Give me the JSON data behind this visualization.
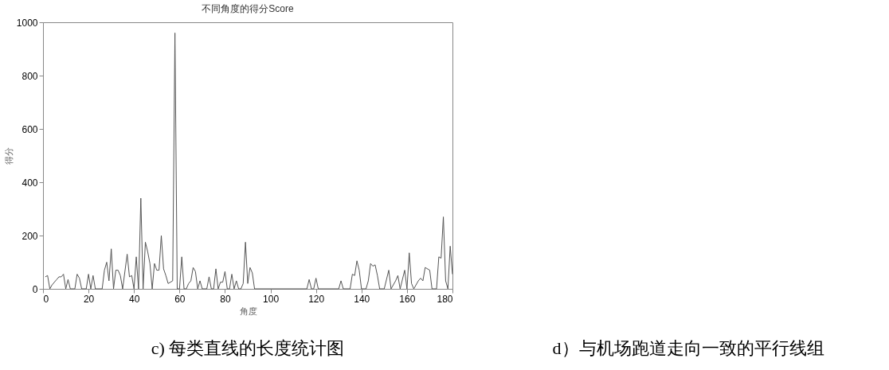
{
  "chart_data": {
    "type": "line",
    "title": "不同角度的得分Score",
    "xlabel": "角度",
    "ylabel": "得分",
    "x": [
      1,
      2,
      3,
      4,
      6,
      7,
      8,
      9,
      10,
      11,
      12,
      14,
      15,
      16,
      17,
      19,
      20,
      21,
      22,
      23,
      26,
      27,
      28,
      29,
      30,
      31,
      32,
      33,
      34,
      35,
      37,
      38,
      39,
      40,
      41,
      42,
      43,
      44,
      45,
      46,
      47,
      48,
      49,
      50,
      51,
      52,
      53,
      54,
      55,
      56,
      57,
      58,
      59,
      60,
      61,
      62,
      63,
      64,
      65,
      66,
      67,
      68,
      69,
      70,
      72,
      73,
      74,
      75,
      76,
      77,
      78,
      79,
      80,
      81,
      82,
      83,
      84,
      85,
      86,
      87,
      88,
      89,
      90,
      91,
      92,
      93,
      116,
      117,
      118,
      119,
      120,
      121,
      130,
      131,
      132,
      135,
      136,
      137,
      138,
      139,
      140,
      142,
      143,
      144,
      145,
      146,
      147,
      148,
      150,
      152,
      153,
      155,
      156,
      157,
      159,
      160,
      161,
      162,
      163,
      165,
      166,
      167,
      168,
      170,
      171,
      173,
      174,
      175,
      176,
      177,
      178,
      179,
      180
    ],
    "series": [
      {
        "color": "#555555",
        "values": [
          45,
          50,
          0,
          15,
          35,
          45,
          45,
          55,
          0,
          35,
          0,
          0,
          55,
          40,
          0,
          0,
          55,
          0,
          50,
          0,
          0,
          70,
          100,
          30,
          150,
          0,
          70,
          70,
          50,
          0,
          130,
          45,
          50,
          0,
          120,
          0,
          340,
          0,
          175,
          140,
          95,
          0,
          95,
          70,
          70,
          200,
          75,
          50,
          20,
          25,
          30,
          960,
          0,
          0,
          120,
          0,
          0,
          20,
          30,
          80,
          65,
          0,
          30,
          0,
          0,
          45,
          0,
          0,
          75,
          0,
          25,
          25,
          65,
          0,
          0,
          55,
          0,
          30,
          0,
          0,
          20,
          175,
          20,
          80,
          60,
          0,
          0,
          35,
          0,
          0,
          40,
          0,
          0,
          30,
          0,
          0,
          55,
          50,
          105,
          70,
          0,
          0,
          30,
          95,
          85,
          90,
          50,
          0,
          0,
          70,
          0,
          30,
          50,
          0,
          70,
          0,
          135,
          20,
          0,
          30,
          40,
          30,
          80,
          70,
          0,
          0,
          120,
          115,
          270,
          30,
          0,
          160,
          55
        ]
      }
    ],
    "xlim": [
      0,
      180
    ],
    "xticks": [
      0,
      20,
      40,
      60,
      80,
      100,
      120,
      140,
      160,
      180
    ],
    "ylim": [
      0,
      1000
    ],
    "yticks": [
      0,
      200,
      400,
      600,
      800,
      1000
    ],
    "grid": false,
    "legend": false,
    "marker": "none",
    "line_style": "solid",
    "annotations": [
      "c) 每类直线的长度统计图",
      "d）与机场跑道走向一致的平行线组"
    ]
  }
}
